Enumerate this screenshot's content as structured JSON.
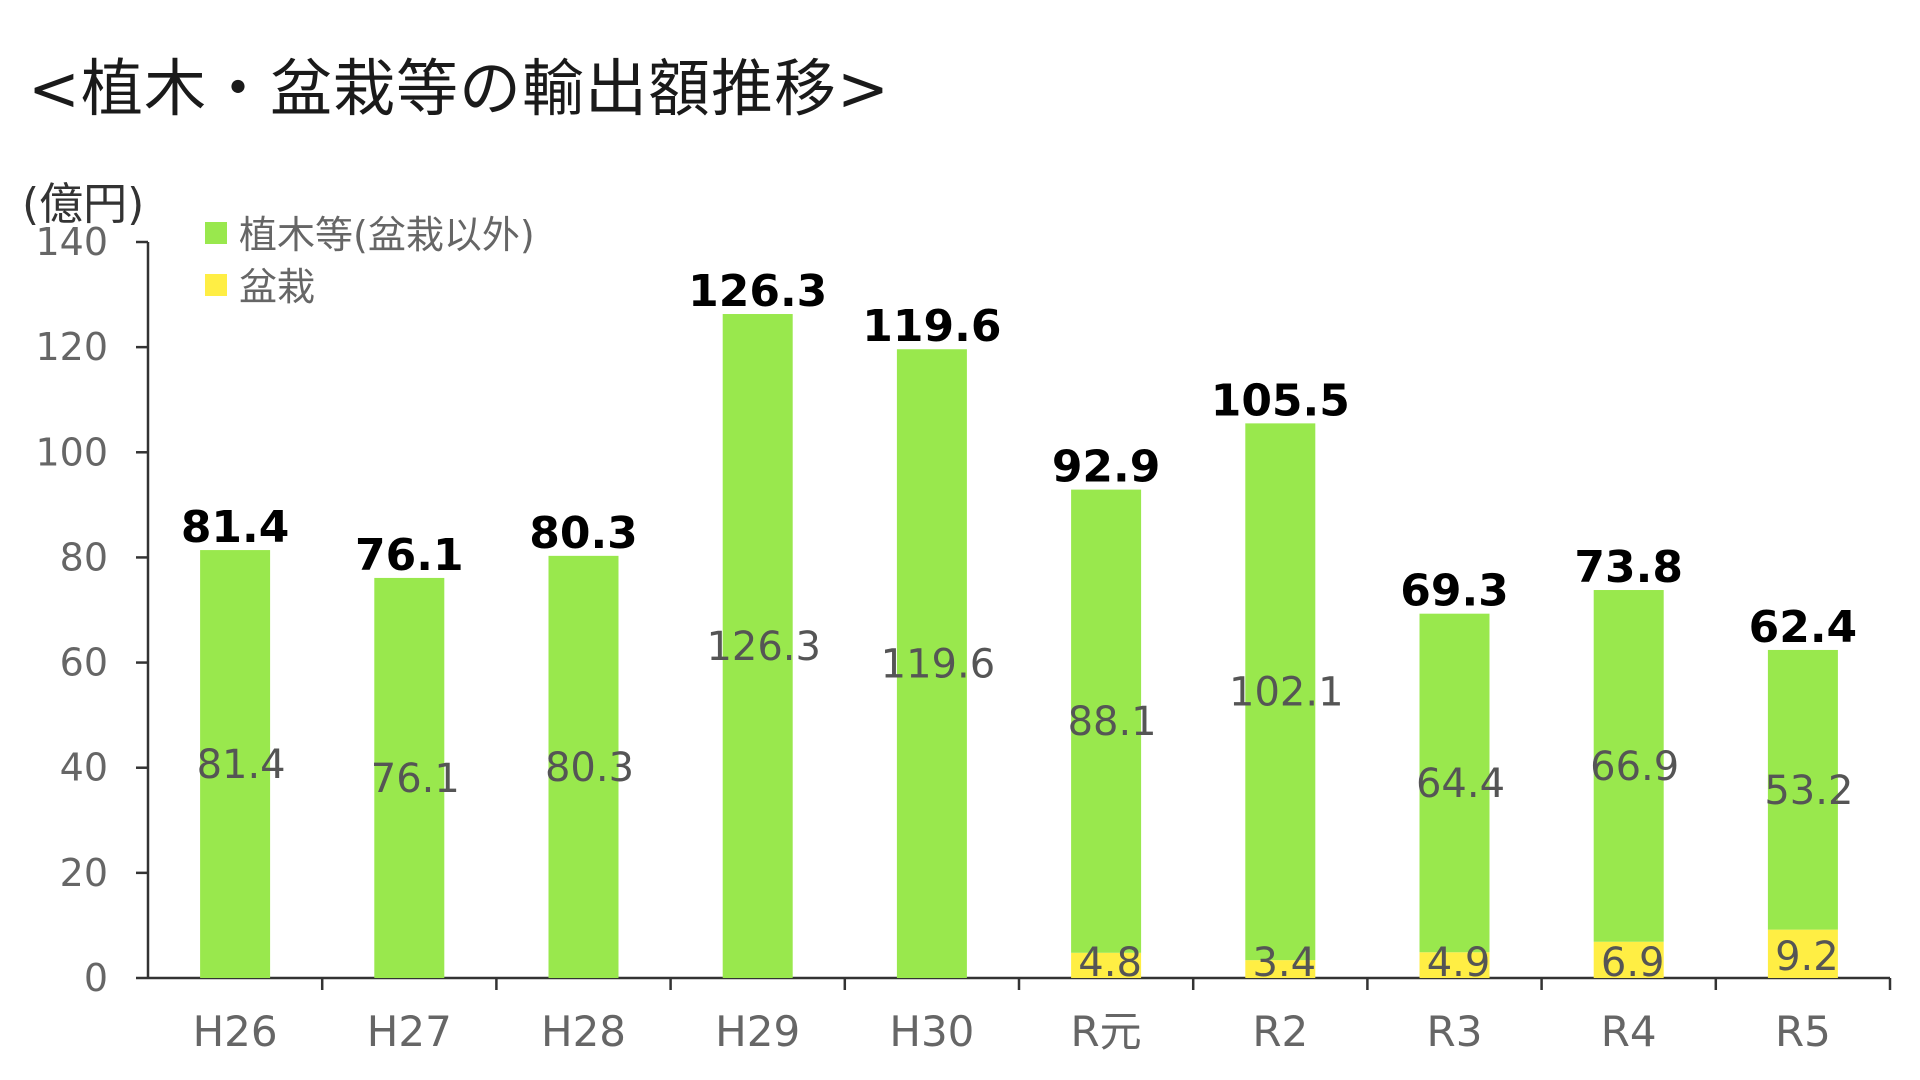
{
  "chart_data": {
    "type": "bar",
    "stacked": true,
    "title": "<植木・盆栽等の輸出額推移>",
    "ylabel": "(億円)",
    "xlabel": "",
    "ylim": [
      0,
      140
    ],
    "yticks": [
      0,
      20,
      40,
      60,
      80,
      100,
      120,
      140
    ],
    "categories": [
      "H26",
      "H27",
      "H28",
      "H29",
      "H30",
      "R元",
      "R2",
      "R3",
      "R4",
      "R5"
    ],
    "series": [
      {
        "name": "盆栽",
        "color": "#ffee44",
        "values": [
          null,
          null,
          null,
          null,
          null,
          4.8,
          3.4,
          4.9,
          6.9,
          9.2
        ],
        "labels": [
          "",
          "",
          "",
          "",
          "",
          "4.8",
          "3.4",
          "4.9",
          "6.9",
          "9.2"
        ]
      },
      {
        "name": "植木等(盆栽以外)",
        "color": "#99e84d",
        "values": [
          81.4,
          76.1,
          80.3,
          126.3,
          119.6,
          88.1,
          102.1,
          64.4,
          66.9,
          53.2
        ],
        "labels": [
          "81.4",
          "76.1",
          "80.3",
          "126.3",
          "119.6",
          "88.1",
          "102.1",
          "64.4",
          "66.9",
          "53.2"
        ]
      }
    ],
    "totals": [
      81.4,
      76.1,
      80.3,
      126.3,
      119.6,
      92.9,
      105.5,
      69.3,
      73.8,
      62.4
    ],
    "total_labels": [
      "81.4",
      "76.1",
      "80.3",
      "126.3",
      "119.6",
      "92.9",
      "105.5",
      "69.3",
      "73.8",
      "62.4"
    ],
    "legend": {
      "position": "top-left",
      "entries": [
        {
          "label": "植木等(盆栽以外)",
          "color": "#99e84d"
        },
        {
          "label": "盆栽",
          "color": "#ffee44"
        }
      ]
    },
    "grid": false,
    "colors": {
      "axis": "#333333",
      "tick_text": "#666666",
      "total_text": "#000000"
    }
  }
}
